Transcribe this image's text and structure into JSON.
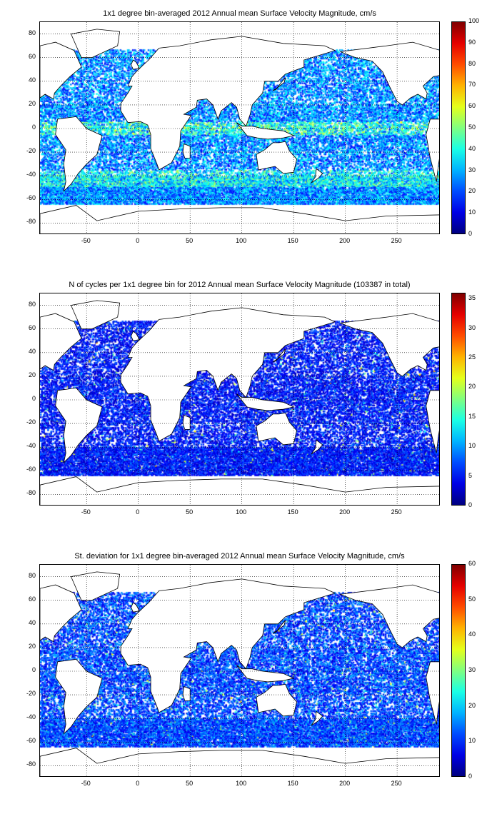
{
  "colormap": "jet",
  "land_color": "#ffffff",
  "grid_style": "dotted",
  "x_axis": {
    "range": [
      -95,
      292
    ],
    "ticks": [
      "-50",
      "0",
      "50",
      "100",
      "150",
      "200",
      "250"
    ]
  },
  "y_axis": {
    "range": [
      -90,
      90
    ],
    "ticks": [
      "80",
      "60",
      "40",
      "20",
      "0",
      "-20",
      "-40",
      "-60",
      "-80"
    ]
  },
  "panels": [
    {
      "title": "1x1 degree bin-averaged 2012 Annual mean Surface Velocity Magnitude, cm/s",
      "colorbar": {
        "range": [
          0,
          100
        ],
        "ticks": [
          "100",
          "90",
          "80",
          "70",
          "60",
          "50",
          "40",
          "30",
          "20",
          "10",
          "0"
        ]
      }
    },
    {
      "title": "N of cycles per 1x1 degree bin for 2012 Annual mean Surface Velocity Magnitude (103387 in total)",
      "colorbar": {
        "range": [
          0,
          36
        ],
        "ticks": [
          "35",
          "30",
          "25",
          "20",
          "15",
          "10",
          "5",
          "0"
        ]
      }
    },
    {
      "title": "St. deviation for 1x1 degree bin-averaged 2012 Annual mean Surface Velocity Magnitude, cm/s",
      "colorbar": {
        "range": [
          0,
          60
        ],
        "ticks": [
          "60",
          "50",
          "40",
          "30",
          "20",
          "10",
          "0"
        ]
      }
    }
  ]
}
